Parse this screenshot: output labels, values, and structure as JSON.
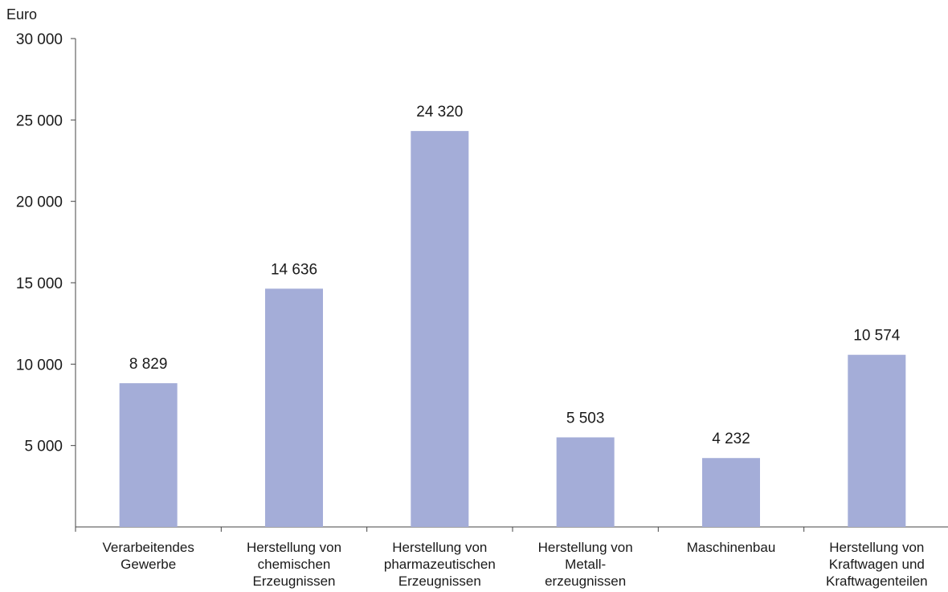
{
  "chart_data": {
    "type": "bar",
    "unit_label": "Euro",
    "categories": [
      [
        "Verarbeitendes",
        "Gewerbe"
      ],
      [
        "Herstellung von",
        "chemischen",
        "Erzeugnissen"
      ],
      [
        "Herstellung von",
        "pharmazeutischen",
        "Erzeugnissen"
      ],
      [
        "Herstellung von",
        "Metall-",
        "erzeugnissen"
      ],
      [
        "Maschinenbau"
      ],
      [
        "Herstellung von",
        "Kraftwagen und",
        "Kraftwagenteilen"
      ]
    ],
    "values": [
      8829,
      14636,
      24320,
      5503,
      4232,
      10574
    ],
    "value_labels": [
      "8 829",
      "14 636",
      "24 320",
      "5 503",
      "4 232",
      "10 574"
    ],
    "ylim": [
      0,
      30000
    ],
    "yticks": [
      5000,
      10000,
      15000,
      20000,
      25000,
      30000
    ],
    "ytick_labels": [
      "5 000",
      "10 000",
      "15 000",
      "20 000",
      "25 000",
      "30 000"
    ],
    "grid": false,
    "legend": "none",
    "bar_color": "#a4add8"
  }
}
